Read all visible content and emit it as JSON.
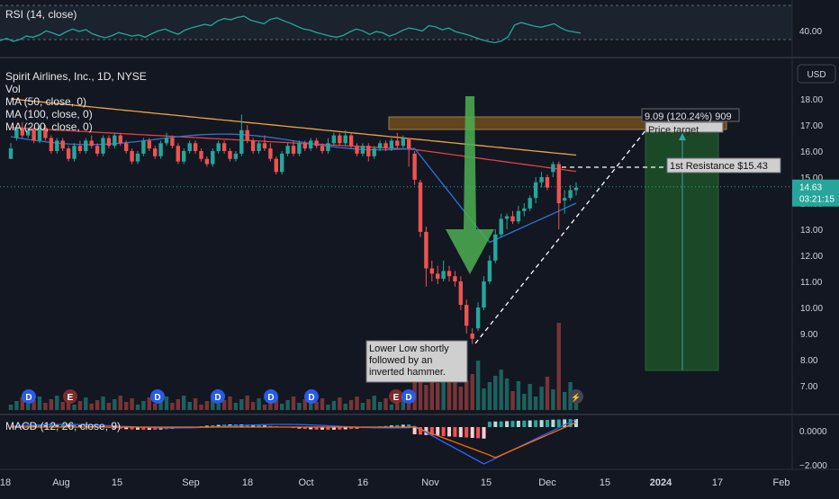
{
  "chart_data": {
    "type": "candlestick",
    "symbol_line": "Spirit Airlines, Inc., 1D, NYSE",
    "currency": "USD",
    "indicators": {
      "rsi": "RSI (14, close)",
      "vol": "Vol",
      "ma50": "MA (50, close, 0)",
      "ma100": "MA (100, close, 0)",
      "ma200": "MA (200, close, 0)",
      "macd": "MACD (12, 26, close, 9)"
    },
    "rsi_axis_label": "40.00",
    "price_axis": {
      "ticks": [
        "18.00",
        "17.00",
        "16.00",
        "15.00",
        "14.00",
        "13.00",
        "12.00",
        "11.00",
        "10.00",
        "9.00",
        "8.00",
        "7.00"
      ],
      "ylim": [
        6.4,
        18.6
      ],
      "current_price": "14.63",
      "countdown": "03:21:15"
    },
    "macd_axis": {
      "ticks": [
        "0.0000",
        "−2.000"
      ]
    },
    "time_axis": {
      "labels": [
        "18",
        "Aug",
        "15",
        "Sep",
        "18",
        "Oct",
        "16",
        "Nov",
        "15",
        "Dec",
        "15",
        "2024",
        "17",
        "Feb"
      ]
    },
    "annotations": {
      "price_target": "Price target",
      "target_stats": "9.09 (120.24%) 909",
      "resistance": "1st Resistance $15.43",
      "lower_low": [
        "Lower Low shortly",
        "followed by an",
        "inverted hammer."
      ]
    },
    "event_markers": [
      "D",
      "E",
      "D",
      "D",
      "D",
      "D",
      "E",
      "D"
    ],
    "series": {
      "price_bars": [
        [
          15.7,
          16.1,
          15.8,
          16.3
        ],
        [
          16.5,
          16.9,
          16.4,
          17.0
        ],
        [
          16.9,
          16.6,
          16.5,
          17.1
        ],
        [
          16.6,
          16.8,
          16.5,
          16.9
        ],
        [
          16.8,
          16.4,
          16.3,
          16.9
        ],
        [
          16.4,
          16.9,
          16.3,
          17.0
        ],
        [
          16.9,
          16.5,
          16.4,
          17.0
        ],
        [
          16.5,
          16.0,
          15.9,
          16.6
        ],
        [
          16.0,
          16.4,
          15.9,
          16.5
        ],
        [
          16.4,
          16.1,
          16.0,
          16.5
        ],
        [
          16.1,
          15.7,
          15.6,
          16.2
        ],
        [
          15.7,
          16.2,
          15.6,
          16.3
        ],
        [
          16.2,
          16.0,
          15.9,
          16.4
        ],
        [
          16.0,
          16.4,
          15.9,
          16.5
        ],
        [
          16.4,
          16.2,
          16.1,
          16.6
        ],
        [
          16.2,
          15.9,
          15.8,
          16.3
        ],
        [
          15.9,
          16.5,
          15.8,
          16.6
        ],
        [
          16.5,
          16.2,
          16.1,
          16.6
        ],
        [
          16.2,
          16.6,
          16.1,
          16.7
        ],
        [
          16.6,
          16.3,
          16.2,
          16.7
        ],
        [
          16.3,
          16.0,
          15.9,
          16.4
        ],
        [
          16.0,
          15.6,
          15.5,
          16.1
        ],
        [
          15.6,
          15.9,
          15.5,
          16.0
        ],
        [
          15.9,
          16.4,
          15.8,
          16.5
        ],
        [
          16.4,
          16.1,
          16.0,
          16.5
        ],
        [
          16.1,
          15.8,
          15.7,
          16.2
        ],
        [
          15.8,
          16.3,
          15.7,
          16.4
        ],
        [
          16.3,
          16.5,
          16.2,
          16.7
        ],
        [
          16.5,
          16.2,
          16.1,
          16.6
        ],
        [
          16.2,
          15.6,
          15.5,
          16.3
        ],
        [
          15.6,
          16.0,
          15.5,
          16.1
        ],
        [
          16.0,
          16.3,
          15.9,
          16.4
        ],
        [
          16.3,
          16.0,
          15.9,
          16.4
        ],
        [
          16.0,
          15.7,
          15.6,
          16.1
        ],
        [
          15.7,
          15.5,
          15.4,
          15.8
        ],
        [
          15.5,
          16.0,
          15.4,
          16.1
        ],
        [
          16.0,
          16.3,
          15.9,
          16.4
        ],
        [
          16.3,
          16.0,
          15.9,
          16.4
        ],
        [
          16.0,
          15.7,
          15.6,
          16.1
        ],
        [
          15.7,
          15.9,
          15.6,
          16.0
        ],
        [
          15.9,
          16.8,
          15.8,
          17.4
        ],
        [
          16.8,
          16.4,
          16.3,
          17.0
        ],
        [
          16.4,
          16.0,
          15.9,
          16.5
        ],
        [
          16.0,
          16.3,
          15.9,
          16.4
        ],
        [
          16.3,
          16.1,
          16.0,
          16.6
        ],
        [
          16.1,
          15.7,
          15.6,
          16.3
        ],
        [
          15.7,
          15.2,
          15.1,
          15.8
        ],
        [
          15.2,
          15.9,
          15.1,
          16.0
        ],
        [
          15.9,
          16.2,
          15.8,
          16.3
        ],
        [
          16.2,
          15.9,
          15.8,
          16.4
        ],
        [
          15.9,
          16.3,
          15.8,
          16.4
        ],
        [
          16.3,
          16.1,
          16.0,
          16.4
        ],
        [
          16.1,
          16.4,
          16.0,
          16.5
        ],
        [
          16.4,
          16.2,
          16.1,
          16.5
        ],
        [
          16.2,
          16.0,
          15.9,
          16.3
        ],
        [
          16.0,
          16.3,
          15.9,
          16.5
        ],
        [
          16.3,
          16.6,
          16.2,
          16.7
        ],
        [
          16.6,
          16.3,
          16.2,
          16.7
        ],
        [
          16.3,
          16.6,
          16.2,
          16.8
        ],
        [
          16.6,
          16.2,
          16.1,
          16.7
        ],
        [
          16.2,
          15.9,
          15.8,
          16.3
        ],
        [
          15.9,
          16.2,
          15.8,
          16.3
        ],
        [
          16.2,
          15.8,
          15.6,
          16.3
        ],
        [
          15.8,
          16.1,
          15.7,
          16.2
        ],
        [
          16.1,
          16.3,
          16.0,
          16.4
        ],
        [
          16.3,
          16.1,
          16.0,
          16.4
        ],
        [
          16.1,
          16.4,
          16.0,
          16.5
        ],
        [
          16.4,
          16.2,
          16.1,
          16.7
        ],
        [
          16.2,
          16.5,
          16.1,
          16.6
        ],
        [
          16.5,
          16.1,
          15.4,
          16.4
        ],
        [
          15.9,
          14.9,
          14.7,
          16.0
        ],
        [
          14.8,
          12.9,
          12.7,
          14.9
        ],
        [
          12.9,
          11.5,
          10.8,
          13.1
        ],
        [
          11.5,
          11.3,
          11.0,
          11.8
        ],
        [
          11.3,
          11.1,
          10.9,
          11.6
        ],
        [
          11.1,
          11.4,
          11.0,
          11.8
        ],
        [
          11.4,
          11.2,
          11.0,
          11.6
        ],
        [
          11.2,
          11.0,
          10.8,
          11.4
        ],
        [
          11.0,
          10.1,
          9.9,
          11.2
        ],
        [
          10.1,
          9.3,
          9.0,
          10.3
        ],
        [
          9.0,
          8.8,
          8.6,
          9.2
        ],
        [
          9.2,
          10.0,
          9.1,
          10.2
        ],
        [
          10.0,
          11.0,
          9.9,
          11.2
        ],
        [
          11.0,
          11.8,
          10.9,
          12.0
        ],
        [
          11.8,
          12.8,
          11.7,
          13.0
        ],
        [
          12.8,
          13.4,
          12.7,
          13.6
        ],
        [
          13.4,
          13.5,
          13.0,
          13.6
        ],
        [
          13.5,
          13.3,
          13.2,
          13.7
        ],
        [
          13.3,
          13.7,
          13.2,
          13.9
        ],
        [
          13.7,
          13.8,
          13.5,
          14.0
        ],
        [
          13.8,
          14.2,
          13.7,
          14.3
        ],
        [
          14.2,
          14.8,
          14.0,
          15.0
        ],
        [
          14.8,
          15.0,
          14.6,
          15.2
        ],
        [
          15.0,
          14.6,
          14.5,
          15.1
        ],
        [
          15.2,
          15.5,
          15.0,
          15.6
        ],
        [
          15.5,
          14.0,
          13.0,
          15.6
        ],
        [
          14.1,
          14.2,
          13.6,
          14.5
        ],
        [
          14.2,
          14.5,
          14.1,
          14.7
        ],
        [
          14.5,
          14.6,
          14.3,
          14.8
        ]
      ]
    }
  }
}
